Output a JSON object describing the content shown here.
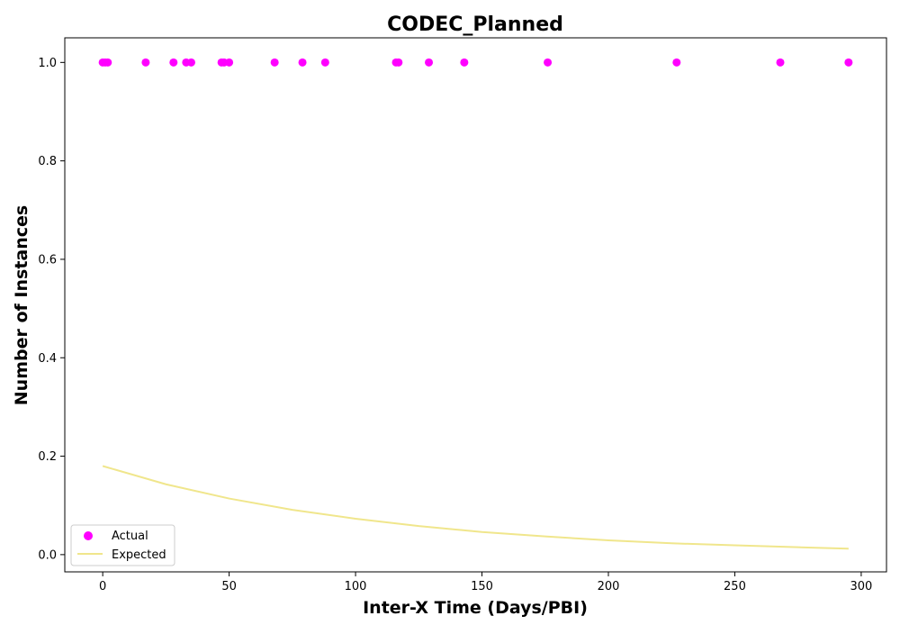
{
  "chart_data": {
    "type": "scatter",
    "title": "CODEC_Planned",
    "xlabel": "Inter-X Time (Days/PBI)",
    "ylabel": "Number of Instances",
    "xlim": [
      -15,
      310
    ],
    "ylim": [
      -0.035,
      1.05
    ],
    "xticks": [
      0,
      50,
      100,
      150,
      200,
      250,
      300
    ],
    "yticks": [
      0.0,
      0.2,
      0.4,
      0.6,
      0.8,
      1.0
    ],
    "grid": false,
    "legend_position": "lower-left",
    "series": [
      {
        "name": "Actual",
        "type": "scatter",
        "color": "#ff00ff",
        "x": [
          0,
          1,
          2,
          17,
          28,
          33,
          35,
          47,
          48,
          50,
          68,
          79,
          88,
          116,
          117,
          129,
          143,
          176,
          227,
          268,
          295
        ],
        "y": [
          1,
          1,
          1,
          1,
          1,
          1,
          1,
          1,
          1,
          1,
          1,
          1,
          1,
          1,
          1,
          1,
          1,
          1,
          1,
          1,
          1
        ]
      },
      {
        "name": "Expected",
        "type": "line",
        "color": "#f0e68c",
        "x": [
          0,
          25,
          50,
          75,
          100,
          125,
          150,
          175,
          200,
          225,
          250,
          275,
          295
        ],
        "y": [
          0.18,
          0.143,
          0.114,
          0.091,
          0.073,
          0.058,
          0.046,
          0.037,
          0.029,
          0.023,
          0.019,
          0.015,
          0.012
        ]
      }
    ]
  }
}
